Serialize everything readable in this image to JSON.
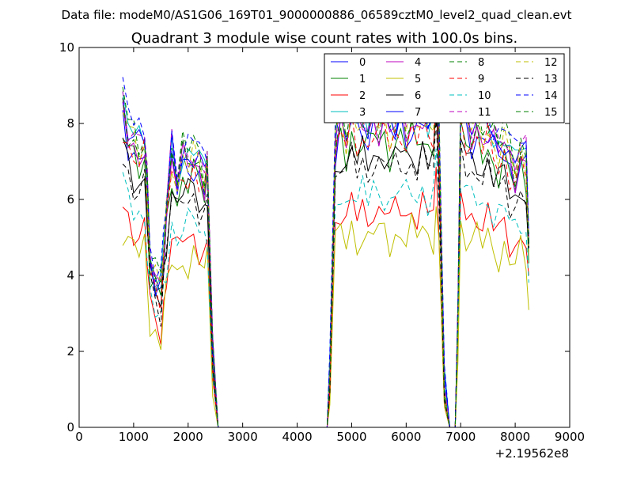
{
  "header": {
    "data_file_label": "Data file: modeM0/AS1G06_169T01_9000000886_06589cztM0_level2_quad_clean.evt"
  },
  "chart_data": {
    "type": "line",
    "title": "Quadrant 3 module wise count rates with 100.0s bins.",
    "xlabel": "",
    "ylabel": "",
    "x_offset_label": "+2.19562e8",
    "xlim": [
      0,
      9000
    ],
    "ylim": [
      0,
      10
    ],
    "xticks": [
      0,
      1000,
      2000,
      3000,
      4000,
      5000,
      6000,
      7000,
      8000,
      9000
    ],
    "yticks": [
      0,
      2,
      4,
      6,
      8,
      10
    ],
    "grid": false,
    "legend_position": "top-right",
    "legend_columns": 4,
    "x": [
      800,
      900,
      1000,
      1100,
      1200,
      1250,
      1300,
      1400,
      1500,
      1550,
      1600,
      1700,
      1800,
      1900,
      2000,
      2100,
      2200,
      2300,
      2350,
      2450,
      2550,
      4550,
      4600,
      4700,
      4800,
      4900,
      5000,
      5100,
      5200,
      5300,
      5400,
      5500,
      5600,
      5700,
      5800,
      5900,
      6000,
      6100,
      6200,
      6300,
      6400,
      6500,
      6550,
      6600,
      6700,
      6800,
      6900,
      6950,
      7000,
      7100,
      7200,
      7300,
      7400,
      7500,
      7600,
      7700,
      7800,
      7900,
      8000,
      8100,
      8200,
      8250
    ],
    "base_profile": [
      8.0,
      7.4,
      7.1,
      6.9,
      7.1,
      5.9,
      4.2,
      3.7,
      3.5,
      4.4,
      5.3,
      6.8,
      6.1,
      6.7,
      6.6,
      6.8,
      6.5,
      6.2,
      6.6,
      1.8,
      0,
      0,
      1.4,
      7.2,
      7.8,
      7.3,
      7.9,
      7.5,
      7.7,
      7.4,
      7.9,
      7.6,
      7.8,
      7.4,
      7.6,
      7.9,
      7.5,
      7.8,
      7.6,
      7.9,
      7.5,
      7.7,
      8.8,
      7.4,
      1.0,
      0,
      0,
      3.0,
      8.1,
      7.7,
      7.4,
      7.6,
      7.3,
      7.5,
      7.1,
      6.9,
      7.2,
      6.7,
      6.4,
      6.9,
      6.6,
      4.7
    ],
    "series": [
      {
        "name": "0",
        "color": "#0000ff",
        "dash": "solid",
        "scale": 1.02
      },
      {
        "name": "1",
        "color": "#008000",
        "dash": "solid",
        "scale": 0.98
      },
      {
        "name": "2",
        "color": "#ff0000",
        "dash": "solid",
        "scale": 0.74
      },
      {
        "name": "3",
        "color": "#00bfbf",
        "dash": "solid",
        "scale": 1.08
      },
      {
        "name": "4",
        "color": "#bf00bf",
        "dash": "solid",
        "scale": 1.04
      },
      {
        "name": "5",
        "color": "#bfbf00",
        "dash": "solid",
        "scale": 0.66
      },
      {
        "name": "6",
        "color": "#000000",
        "dash": "solid",
        "scale": 0.93
      },
      {
        "name": "7",
        "color": "#0000ff",
        "dash": "solid",
        "scale": 1.07
      },
      {
        "name": "8",
        "color": "#008000",
        "dash": "dashed",
        "scale": 1.1
      },
      {
        "name": "9",
        "color": "#ff0000",
        "dash": "dashed",
        "scale": 1.0
      },
      {
        "name": "10",
        "color": "#00bfbf",
        "dash": "dashed",
        "scale": 0.8
      },
      {
        "name": "11",
        "color": "#bf00bf",
        "dash": "dashed",
        "scale": 1.09
      },
      {
        "name": "12",
        "color": "#bfbf00",
        "dash": "dashed",
        "scale": 1.05
      },
      {
        "name": "13",
        "color": "#000000",
        "dash": "dashed",
        "scale": 0.9
      },
      {
        "name": "14",
        "color": "#0000ff",
        "dash": "dashed",
        "scale": 1.12
      },
      {
        "name": "15",
        "color": "#008000",
        "dash": "dashed",
        "scale": 1.06
      }
    ]
  }
}
